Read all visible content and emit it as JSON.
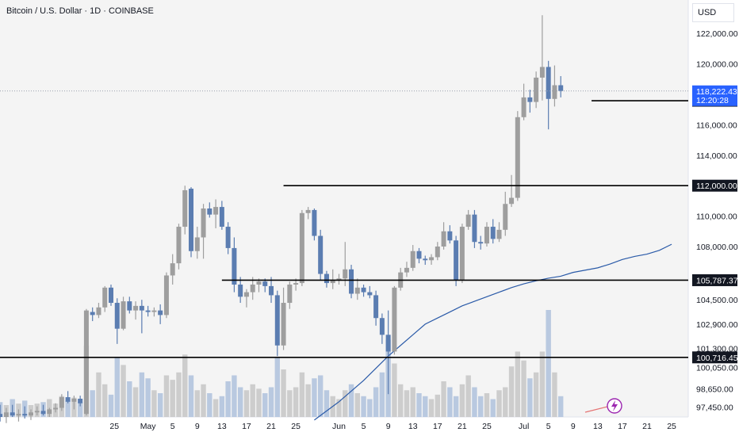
{
  "header": {
    "title": "Bitcoin / U.S. Dollar · 1D · COINBASE",
    "currency": "USD"
  },
  "colors": {
    "up": "#9e9e9e",
    "down": "#5b7db1",
    "ma": "#2a5aa8",
    "level": "#000000",
    "price_tag": "#2962ff",
    "signal": "#9c27b0"
  },
  "chart_data": {
    "type": "candlestick",
    "symbol": "BTCUSD",
    "interval": "1D",
    "exchange": "COINBASE",
    "ylim": [
      96800,
      124200
    ],
    "y_ticks": [
      122000,
      120000,
      116000,
      114000,
      112000,
      110000,
      108000,
      104500,
      102900,
      101300,
      100050,
      98650,
      97450
    ],
    "x_ticks": [
      {
        "label": "25",
        "idx": -1
      },
      {
        "label": "May",
        "idx": 6
      },
      {
        "label": "5",
        "idx": 10
      },
      {
        "label": "9",
        "idx": 14
      },
      {
        "label": "13",
        "idx": 18
      },
      {
        "label": "17",
        "idx": 22
      },
      {
        "label": "21",
        "idx": 26
      },
      {
        "label": "25",
        "idx": 30
      },
      {
        "label": "Jun",
        "idx": 37
      },
      {
        "label": "5",
        "idx": 41
      },
      {
        "label": "9",
        "idx": 45
      },
      {
        "label": "13",
        "idx": 49
      },
      {
        "label": "17",
        "idx": 53
      },
      {
        "label": "21",
        "idx": 57
      },
      {
        "label": "25",
        "idx": 61
      },
      {
        "label": "Jul",
        "idx": 67
      },
      {
        "label": "5",
        "idx": 71
      },
      {
        "label": "9",
        "idx": 75
      },
      {
        "label": "13",
        "idx": 79
      },
      {
        "label": "17",
        "idx": 83
      },
      {
        "label": "21",
        "idx": 87
      },
      {
        "label": "25",
        "idx": 91
      }
    ],
    "levels": [
      {
        "price": 117582.16,
        "label": "117,582.16",
        "from_idx": 78
      },
      {
        "price": 112000.0,
        "label": "112,000.00",
        "from_idx": 28
      },
      {
        "price": 105787.37,
        "label": "105,787.37",
        "from_idx": 18
      },
      {
        "price": 100716.45,
        "label": "100,716.45",
        "from_idx": -20
      }
    ],
    "last_price": {
      "price": 118222.43,
      "label": "118,222.43",
      "countdown": "12:20:28"
    },
    "candles": [
      {
        "o": 97000,
        "h": 97600,
        "l": 96500,
        "c": 96800,
        "v": 10
      },
      {
        "o": 96800,
        "h": 97400,
        "l": 96400,
        "c": 97100,
        "v": 8
      },
      {
        "o": 97100,
        "h": 97600,
        "l": 96800,
        "c": 96900,
        "v": 12
      },
      {
        "o": 96900,
        "h": 97300,
        "l": 96500,
        "c": 97000,
        "v": 9
      },
      {
        "o": 97000,
        "h": 97500,
        "l": 96700,
        "c": 96900,
        "v": 11
      },
      {
        "o": 96900,
        "h": 97300,
        "l": 96600,
        "c": 97100,
        "v": 8
      },
      {
        "o": 97100,
        "h": 97500,
        "l": 96900,
        "c": 97200,
        "v": 9
      },
      {
        "o": 97200,
        "h": 97600,
        "l": 96900,
        "c": 97000,
        "v": 10
      },
      {
        "o": 97000,
        "h": 97400,
        "l": 96800,
        "c": 97300,
        "v": 12
      },
      {
        "o": 97300,
        "h": 97700,
        "l": 97100,
        "c": 97400,
        "v": 9
      },
      {
        "o": 97400,
        "h": 98300,
        "l": 97200,
        "c": 98100,
        "v": 14
      },
      {
        "o": 98100,
        "h": 98500,
        "l": 97700,
        "c": 97800,
        "v": 11
      },
      {
        "o": 97800,
        "h": 98200,
        "l": 97300,
        "c": 98000,
        "v": 13
      },
      {
        "o": 98000,
        "h": 98200,
        "l": 97500,
        "c": 97700,
        "v": 10
      },
      {
        "o": 97000,
        "h": 103900,
        "l": 96900,
        "c": 103800,
        "v": 48
      },
      {
        "o": 103700,
        "h": 104000,
        "l": 103100,
        "c": 103500,
        "v": 18
      },
      {
        "o": 103500,
        "h": 104300,
        "l": 103300,
        "c": 104000,
        "v": 30
      },
      {
        "o": 104000,
        "h": 105400,
        "l": 103700,
        "c": 105300,
        "v": 22
      },
      {
        "o": 105300,
        "h": 105500,
        "l": 104100,
        "c": 104300,
        "v": 15
      },
      {
        "o": 104300,
        "h": 104600,
        "l": 101600,
        "c": 102600,
        "v": 40
      },
      {
        "o": 102600,
        "h": 104700,
        "l": 102500,
        "c": 104400,
        "v": 35
      },
      {
        "o": 104400,
        "h": 104700,
        "l": 103600,
        "c": 103800,
        "v": 24
      },
      {
        "o": 103800,
        "h": 104400,
        "l": 103200,
        "c": 104100,
        "v": 20
      },
      {
        "o": 104100,
        "h": 104500,
        "l": 102300,
        "c": 103800,
        "v": 30
      },
      {
        "o": 103800,
        "h": 104100,
        "l": 103400,
        "c": 103700,
        "v": 26
      },
      {
        "o": 103700,
        "h": 104000,
        "l": 103400,
        "c": 103800,
        "v": 18
      },
      {
        "o": 103800,
        "h": 104200,
        "l": 102900,
        "c": 103500,
        "v": 16
      },
      {
        "o": 103500,
        "h": 106300,
        "l": 103300,
        "c": 106100,
        "v": 28
      },
      {
        "o": 106100,
        "h": 107500,
        "l": 105500,
        "c": 106900,
        "v": 25
      },
      {
        "o": 106900,
        "h": 109500,
        "l": 106500,
        "c": 109300,
        "v": 30
      },
      {
        "o": 109300,
        "h": 112000,
        "l": 108800,
        "c": 111700,
        "v": 42
      },
      {
        "o": 111800,
        "h": 111900,
        "l": 107300,
        "c": 107700,
        "v": 28
      },
      {
        "o": 107700,
        "h": 109300,
        "l": 107200,
        "c": 108600,
        "v": 18
      },
      {
        "o": 108600,
        "h": 110800,
        "l": 107200,
        "c": 110500,
        "v": 22
      },
      {
        "o": 110500,
        "h": 110900,
        "l": 109900,
        "c": 110100,
        "v": 16
      },
      {
        "o": 110100,
        "h": 111100,
        "l": 109200,
        "c": 110600,
        "v": 12
      },
      {
        "o": 110600,
        "h": 111000,
        "l": 109100,
        "c": 109300,
        "v": 14
      },
      {
        "o": 109300,
        "h": 109600,
        "l": 107500,
        "c": 107900,
        "v": 24
      },
      {
        "o": 107900,
        "h": 108600,
        "l": 105000,
        "c": 105500,
        "v": 28
      },
      {
        "o": 105500,
        "h": 106000,
        "l": 104300,
        "c": 104700,
        "v": 20
      },
      {
        "o": 104700,
        "h": 105200,
        "l": 104000,
        "c": 105000,
        "v": 18
      },
      {
        "o": 105000,
        "h": 106000,
        "l": 104500,
        "c": 105500,
        "v": 22
      },
      {
        "o": 105500,
        "h": 105900,
        "l": 105000,
        "c": 105700,
        "v": 19
      },
      {
        "o": 105700,
        "h": 105900,
        "l": 105000,
        "c": 105400,
        "v": 16
      },
      {
        "o": 105400,
        "h": 106000,
        "l": 104300,
        "c": 104800,
        "v": 20
      },
      {
        "o": 104800,
        "h": 105100,
        "l": 100800,
        "c": 101500,
        "v": 40
      },
      {
        "o": 101500,
        "h": 105300,
        "l": 101200,
        "c": 104300,
        "v": 32
      },
      {
        "o": 104300,
        "h": 105700,
        "l": 103900,
        "c": 105500,
        "v": 18
      },
      {
        "o": 105500,
        "h": 105900,
        "l": 105100,
        "c": 105600,
        "v": 20
      },
      {
        "o": 105600,
        "h": 110400,
        "l": 105400,
        "c": 110200,
        "v": 30
      },
      {
        "o": 110200,
        "h": 110600,
        "l": 109800,
        "c": 110400,
        "v": 22
      },
      {
        "o": 110400,
        "h": 110500,
        "l": 108400,
        "c": 108700,
        "v": 26
      },
      {
        "o": 108700,
        "h": 109100,
        "l": 105800,
        "c": 106200,
        "v": 28
      },
      {
        "o": 106200,
        "h": 106400,
        "l": 105300,
        "c": 105600,
        "v": 18
      },
      {
        "o": 105600,
        "h": 106500,
        "l": 105200,
        "c": 105800,
        "v": 14
      },
      {
        "o": 105800,
        "h": 106200,
        "l": 105500,
        "c": 105900,
        "v": 12
      },
      {
        "o": 105900,
        "h": 108300,
        "l": 105400,
        "c": 106500,
        "v": 18
      },
      {
        "o": 106500,
        "h": 106800,
        "l": 104600,
        "c": 104900,
        "v": 22
      },
      {
        "o": 104900,
        "h": 105900,
        "l": 104500,
        "c": 105300,
        "v": 16
      },
      {
        "o": 105300,
        "h": 105500,
        "l": 104700,
        "c": 105000,
        "v": 14
      },
      {
        "o": 105000,
        "h": 105400,
        "l": 104600,
        "c": 104800,
        "v": 12
      },
      {
        "o": 104800,
        "h": 105100,
        "l": 102800,
        "c": 103300,
        "v": 20
      },
      {
        "o": 103300,
        "h": 103600,
        "l": 101600,
        "c": 102200,
        "v": 30
      },
      {
        "o": 102200,
        "h": 103800,
        "l": 98300,
        "c": 101100,
        "v": 52
      },
      {
        "o": 101100,
        "h": 105400,
        "l": 100900,
        "c": 105300,
        "v": 36
      },
      {
        "o": 105300,
        "h": 106600,
        "l": 105100,
        "c": 106300,
        "v": 22
      },
      {
        "o": 106300,
        "h": 107000,
        "l": 106000,
        "c": 106600,
        "v": 18
      },
      {
        "o": 106600,
        "h": 108100,
        "l": 106400,
        "c": 107700,
        "v": 20
      },
      {
        "o": 107700,
        "h": 107900,
        "l": 106900,
        "c": 107200,
        "v": 16
      },
      {
        "o": 107200,
        "h": 107400,
        "l": 106800,
        "c": 107100,
        "v": 14
      },
      {
        "o": 107100,
        "h": 107500,
        "l": 106800,
        "c": 107300,
        "v": 12
      },
      {
        "o": 107300,
        "h": 108300,
        "l": 107100,
        "c": 108000,
        "v": 15
      },
      {
        "o": 108000,
        "h": 109600,
        "l": 107800,
        "c": 109000,
        "v": 24
      },
      {
        "o": 109000,
        "h": 109400,
        "l": 108200,
        "c": 108400,
        "v": 20
      },
      {
        "o": 108400,
        "h": 108700,
        "l": 105400,
        "c": 105800,
        "v": 14
      },
      {
        "o": 105800,
        "h": 109500,
        "l": 105600,
        "c": 109300,
        "v": 22
      },
      {
        "o": 109300,
        "h": 110400,
        "l": 109100,
        "c": 110100,
        "v": 28
      },
      {
        "o": 110100,
        "h": 110400,
        "l": 107900,
        "c": 108300,
        "v": 20
      },
      {
        "o": 108300,
        "h": 108700,
        "l": 107800,
        "c": 108200,
        "v": 14
      },
      {
        "o": 108200,
        "h": 109600,
        "l": 108000,
        "c": 109300,
        "v": 16
      },
      {
        "o": 109300,
        "h": 109800,
        "l": 108200,
        "c": 108500,
        "v": 12
      },
      {
        "o": 108500,
        "h": 109600,
        "l": 108300,
        "c": 109100,
        "v": 18
      },
      {
        "o": 109100,
        "h": 111600,
        "l": 108700,
        "c": 110800,
        "v": 20
      },
      {
        "o": 110800,
        "h": 112700,
        "l": 110600,
        "c": 111200,
        "v": 34
      },
      {
        "o": 111200,
        "h": 116900,
        "l": 111000,
        "c": 116500,
        "v": 44
      },
      {
        "o": 116500,
        "h": 118700,
        "l": 116300,
        "c": 117800,
        "v": 38
      },
      {
        "o": 117800,
        "h": 118300,
        "l": 116800,
        "c": 117500,
        "v": 26
      },
      {
        "o": 117500,
        "h": 119500,
        "l": 117100,
        "c": 119100,
        "v": 30
      },
      {
        "o": 119100,
        "h": 123200,
        "l": 117600,
        "c": 119800,
        "v": 44
      },
      {
        "o": 119800,
        "h": 120200,
        "l": 115700,
        "c": 117700,
        "v": 72
      },
      {
        "o": 117700,
        "h": 119900,
        "l": 117200,
        "c": 118600,
        "v": 30
      },
      {
        "o": 118600,
        "h": 119200,
        "l": 117800,
        "c": 118222,
        "v": 14
      }
    ],
    "ma": [
      {
        "idx": 33,
        "v": 96600
      },
      {
        "idx": 37,
        "v": 97800
      },
      {
        "idx": 41,
        "v": 99200
      },
      {
        "idx": 45,
        "v": 100800
      },
      {
        "idx": 49,
        "v": 102200
      },
      {
        "idx": 51,
        "v": 102900
      },
      {
        "idx": 53,
        "v": 103300
      },
      {
        "idx": 55,
        "v": 103700
      },
      {
        "idx": 57,
        "v": 104100
      },
      {
        "idx": 59,
        "v": 104400
      },
      {
        "idx": 61,
        "v": 104700
      },
      {
        "idx": 63,
        "v": 105000
      },
      {
        "idx": 65,
        "v": 105300
      },
      {
        "idx": 67,
        "v": 105550
      },
      {
        "idx": 69,
        "v": 105750
      },
      {
        "idx": 71,
        "v": 105920
      },
      {
        "idx": 73,
        "v": 106050
      },
      {
        "idx": 75,
        "v": 106300
      },
      {
        "idx": 77,
        "v": 106450
      },
      {
        "idx": 79,
        "v": 106600
      },
      {
        "idx": 81,
        "v": 106850
      },
      {
        "idx": 83,
        "v": 107150
      },
      {
        "idx": 85,
        "v": 107350
      },
      {
        "idx": 87,
        "v": 107500
      },
      {
        "idx": 89,
        "v": 107750
      },
      {
        "idx": 91,
        "v": 108150
      }
    ]
  }
}
